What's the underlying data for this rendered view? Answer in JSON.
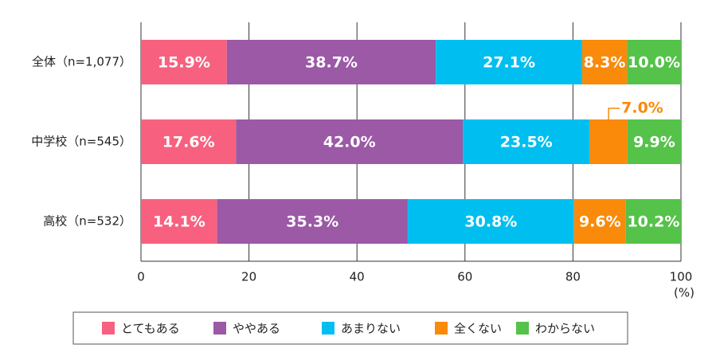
{
  "chart_data": {
    "type": "stacked_barh",
    "categories": [
      "全体（n=1,077）",
      "中学校（n=545）",
      "高校（n=532）"
    ],
    "series": [
      {
        "name": "とてもある",
        "color": "#f7617f",
        "values": [
          15.9,
          17.6,
          14.1
        ],
        "value_labels": [
          "15.9%",
          "17.6%",
          "14.1%"
        ]
      },
      {
        "name": "ややある",
        "color": "#9b59a6",
        "values": [
          38.7,
          42.0,
          35.3
        ],
        "value_labels": [
          "38.7%",
          "42.0%",
          "35.3%"
        ]
      },
      {
        "name": "あまりない",
        "color": "#00bff0",
        "values": [
          27.1,
          23.5,
          30.8
        ],
        "value_labels": [
          "27.1%",
          "23.5%",
          "30.8%"
        ]
      },
      {
        "name": "全くない",
        "color": "#f98a0a",
        "values": [
          8.3,
          7.0,
          9.6
        ],
        "value_labels": [
          "8.3%",
          "7.0%",
          "9.6%"
        ]
      },
      {
        "name": "わからない",
        "color": "#55c24a",
        "values": [
          10.0,
          9.9,
          10.2
        ],
        "value_labels": [
          "10.0%",
          "9.9%",
          "10.2%"
        ]
      }
    ],
    "xlim": [
      0,
      100
    ],
    "xticks": [
      0,
      20,
      40,
      60,
      80,
      100
    ],
    "xlabel": "(%)",
    "grid": true
  }
}
